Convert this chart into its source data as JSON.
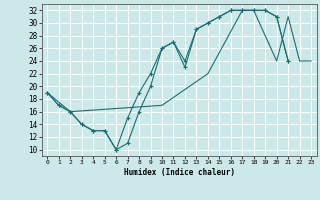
{
  "xlabel": "Humidex (Indice chaleur)",
  "bg_color": "#cce8e8",
  "grid_color": "#ffffff",
  "line_color": "#1a7070",
  "xlim": [
    -0.5,
    23.5
  ],
  "ylim": [
    9,
    33
  ],
  "xticks": [
    0,
    1,
    2,
    3,
    4,
    5,
    6,
    7,
    8,
    9,
    10,
    11,
    12,
    13,
    14,
    15,
    16,
    17,
    18,
    19,
    20,
    21,
    22,
    23
  ],
  "yticks": [
    10,
    12,
    14,
    16,
    18,
    20,
    22,
    24,
    26,
    28,
    30,
    32
  ],
  "line1_x": [
    0,
    1,
    2,
    3,
    4,
    5,
    6,
    7,
    8,
    9,
    10,
    11,
    12,
    13,
    14,
    15,
    16,
    17,
    18,
    19,
    20,
    21
  ],
  "line1_y": [
    19,
    17,
    16,
    14,
    13,
    13,
    10,
    11,
    16,
    20,
    26,
    27,
    24,
    29,
    30,
    31,
    32,
    32,
    32,
    32,
    31,
    24
  ],
  "line2_x": [
    0,
    1,
    2,
    3,
    4,
    5,
    6,
    7,
    8,
    9,
    10,
    11,
    12,
    13,
    14,
    15,
    16,
    17,
    18,
    19,
    20,
    21
  ],
  "line2_y": [
    19,
    17,
    16,
    14,
    13,
    13,
    10,
    15,
    19,
    22,
    26,
    27,
    23,
    29,
    30,
    31,
    32,
    32,
    32,
    32,
    31,
    24
  ],
  "line3_x": [
    0,
    2,
    10,
    14,
    17,
    18,
    20,
    21,
    22,
    23
  ],
  "line3_y": [
    19,
    16,
    17,
    22,
    32,
    32,
    24,
    31,
    24,
    24
  ]
}
